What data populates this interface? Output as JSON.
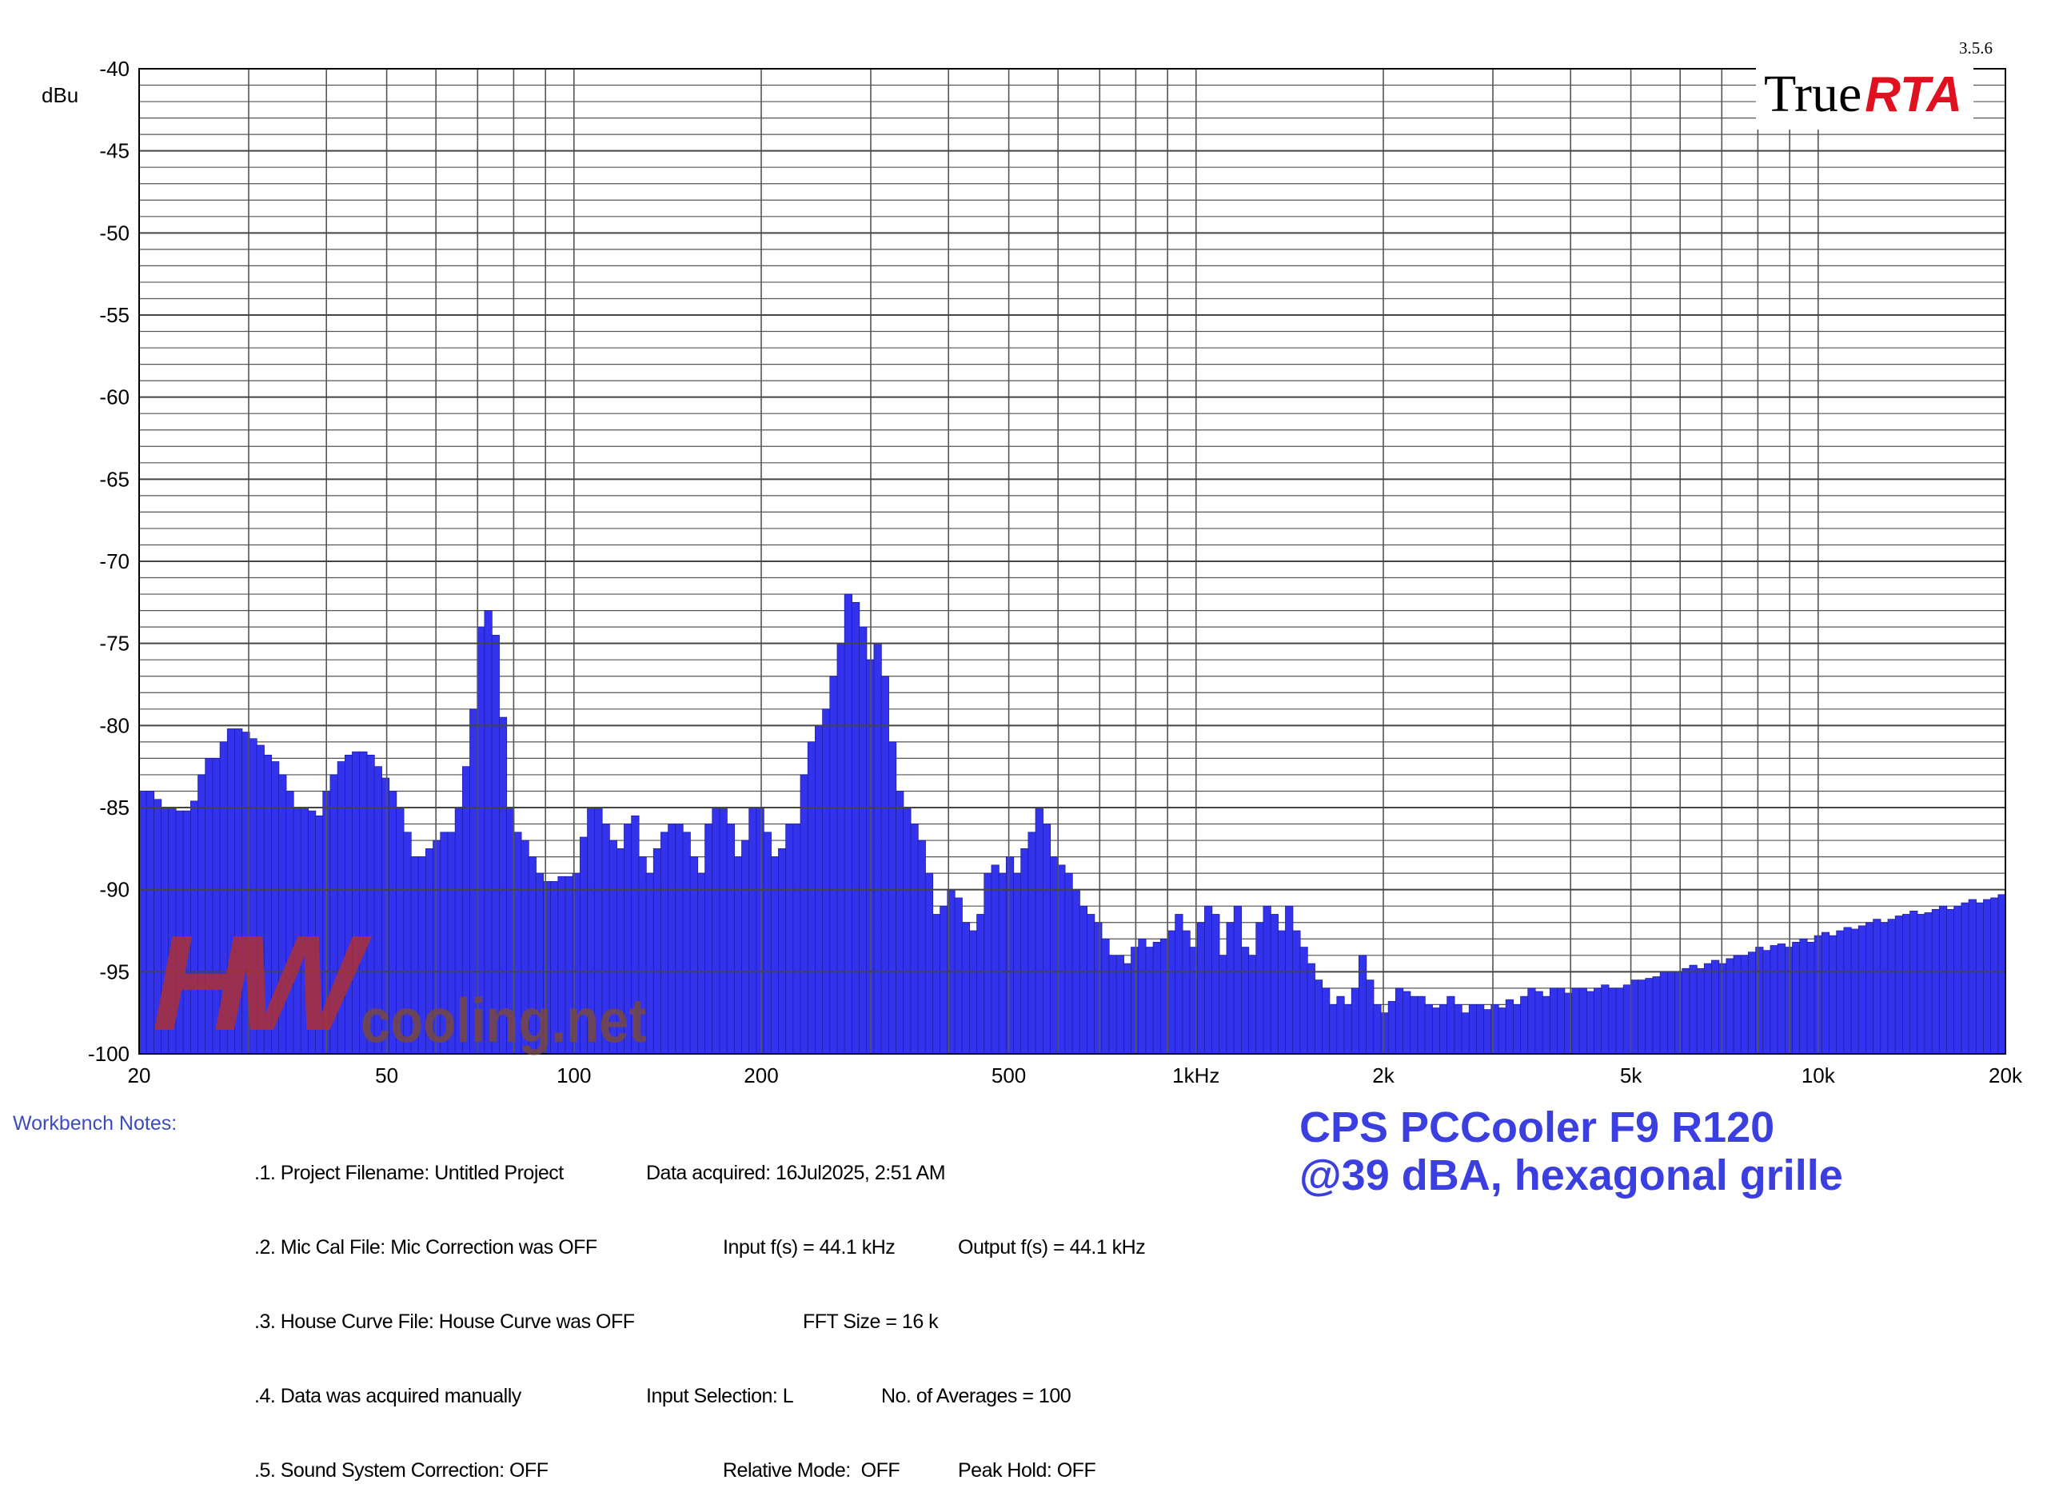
{
  "chart_data": {
    "type": "bar",
    "ylabel": "dBu",
    "x_scale": "log",
    "xlim": [
      20,
      20000
    ],
    "ylim": [
      -100,
      -40
    ],
    "grid": true,
    "y_ticks": [
      "-40",
      "-45",
      "-50",
      "-55",
      "-60",
      "-65",
      "-70",
      "-75",
      "-80",
      "-85",
      "-90",
      "-95",
      "-100"
    ],
    "x_ticks": [
      {
        "value": 20,
        "label": "20"
      },
      {
        "value": 50,
        "label": "50"
      },
      {
        "value": 100,
        "label": "100"
      },
      {
        "value": 200,
        "label": "200"
      },
      {
        "value": 500,
        "label": "500"
      },
      {
        "value": 1000,
        "label": "1kHz"
      },
      {
        "value": 2000,
        "label": "2k"
      },
      {
        "value": 5000,
        "label": "5k"
      },
      {
        "value": 10000,
        "label": "10k"
      },
      {
        "value": 20000,
        "label": "20k"
      }
    ],
    "bar_color": "#3333ee",
    "series": [
      {
        "values": [
          -84.0,
          -84.0,
          -84.5,
          -85.0,
          -85.0,
          -85.2,
          -85.2,
          -84.6,
          -83.0,
          -82.0,
          -82.0,
          -81.0,
          -80.2,
          -80.2,
          -80.4,
          -80.8,
          -81.2,
          -81.8,
          -82.2,
          -83.0,
          -84.0,
          -85.0,
          -85.0,
          -85.2,
          -85.5,
          -84.0,
          -83.0,
          -82.2,
          -81.8,
          -81.6,
          -81.6,
          -81.8,
          -82.5,
          -83.2,
          -84.0,
          -85.0,
          -86.5,
          -88.0,
          -88.0,
          -87.5,
          -87.0,
          -86.5,
          -86.5,
          -85.0,
          -82.5,
          -79.0,
          -74.0,
          -73.0,
          -74.5,
          -79.5,
          -85.0,
          -86.5,
          -87.0,
          -88.0,
          -89.0,
          -89.5,
          -89.5,
          -89.2,
          -89.2,
          -89.0,
          -86.8,
          -85.0,
          -85.0,
          -86.0,
          -87.0,
          -87.5,
          -86.0,
          -85.5,
          -88.0,
          -89.0,
          -87.5,
          -86.5,
          -86.0,
          -86.0,
          -86.5,
          -88.0,
          -89.0,
          -86.0,
          -85.0,
          -85.0,
          -86.0,
          -88.0,
          -87.0,
          -85.0,
          -85.0,
          -86.5,
          -88.0,
          -87.5,
          -86.0,
          -86.0,
          -83.0,
          -81.0,
          -80.0,
          -79.0,
          -77.0,
          -75.0,
          -72.0,
          -72.5,
          -74.0,
          -76.0,
          -75.0,
          -77.0,
          -81.0,
          -84.0,
          -85.0,
          -86.0,
          -87.0,
          -89.0,
          -91.5,
          -91.0,
          -90.0,
          -90.5,
          -92.0,
          -92.5,
          -91.5,
          -89.0,
          -88.5,
          -89.0,
          -88.0,
          -89.0,
          -87.5,
          -86.5,
          -85.0,
          -86.0,
          -88.0,
          -88.5,
          -89.0,
          -90.0,
          -91.0,
          -91.5,
          -92.0,
          -93.0,
          -94.0,
          -94.0,
          -94.5,
          -93.5,
          -93.0,
          -93.5,
          -93.2,
          -93.0,
          -92.5,
          -91.5,
          -92.5,
          -93.5,
          -92.0,
          -91.0,
          -91.5,
          -94.0,
          -92.0,
          -91.0,
          -93.5,
          -94.0,
          -92.0,
          -91.0,
          -91.5,
          -92.5,
          -91.0,
          -92.5,
          -93.5,
          -94.5,
          -95.5,
          -96.0,
          -97.0,
          -96.5,
          -97.0,
          -96.0,
          -94.0,
          -95.5,
          -97.0,
          -97.5,
          -96.8,
          -96.0,
          -96.2,
          -96.5,
          -96.5,
          -97.0,
          -97.2,
          -97.0,
          -96.5,
          -97.0,
          -97.5,
          -97.0,
          -97.0,
          -97.3,
          -97.0,
          -97.2,
          -96.7,
          -97.0,
          -96.5,
          -96.0,
          -96.2,
          -96.5,
          -96.0,
          -96.0,
          -96.3,
          -96.0,
          -96.0,
          -96.2,
          -96.0,
          -95.8,
          -96.0,
          -96.0,
          -95.8,
          -95.5,
          -95.5,
          -95.4,
          -95.3,
          -95.0,
          -95.0,
          -95.0,
          -94.8,
          -94.6,
          -94.8,
          -94.5,
          -94.3,
          -94.5,
          -94.2,
          -94.0,
          -94.0,
          -93.8,
          -93.5,
          -93.7,
          -93.4,
          -93.3,
          -93.5,
          -93.2,
          -93.0,
          -93.2,
          -92.8,
          -92.6,
          -92.8,
          -92.5,
          -92.3,
          -92.4,
          -92.2,
          -92.0,
          -91.8,
          -92.0,
          -91.8,
          -91.6,
          -91.5,
          -91.3,
          -91.5,
          -91.4,
          -91.2,
          -91.0,
          -91.2,
          -91.0,
          -90.8,
          -90.6,
          -90.8,
          -90.6,
          -90.5,
          -90.3
        ]
      }
    ]
  },
  "header": {
    "version": "3.5.6",
    "logo_true": "True",
    "logo_rta": "RTA"
  },
  "watermark": {
    "hw": "HW",
    "site": "cooling.net"
  },
  "notes": {
    "label": "Workbench Notes:",
    "col1": [
      ".1. Project Filename: Untitled Project",
      ".2. Mic Cal File: Mic Correction was OFF",
      ".3. House Curve File: House Curve was OFF",
      ".4. Data was acquired manually",
      ".5. Sound System Correction: OFF"
    ],
    "col2": [
      "Data acquired: 16Jul2025, 2:51 AM",
      "Input f(s) = 44.1 kHz",
      "FFT Size = 16 k",
      "Input Selection: L",
      "Relative Mode:  OFF"
    ],
    "col3": [
      "",
      "Output f(s) = 44.1 kHz",
      "",
      "No. of Averages = 100",
      "Peak Hold: OFF"
    ]
  },
  "caption": {
    "line1": "CPS PCCooler F9 R120",
    "line2": "@39 dBA, hexagonal grille"
  }
}
